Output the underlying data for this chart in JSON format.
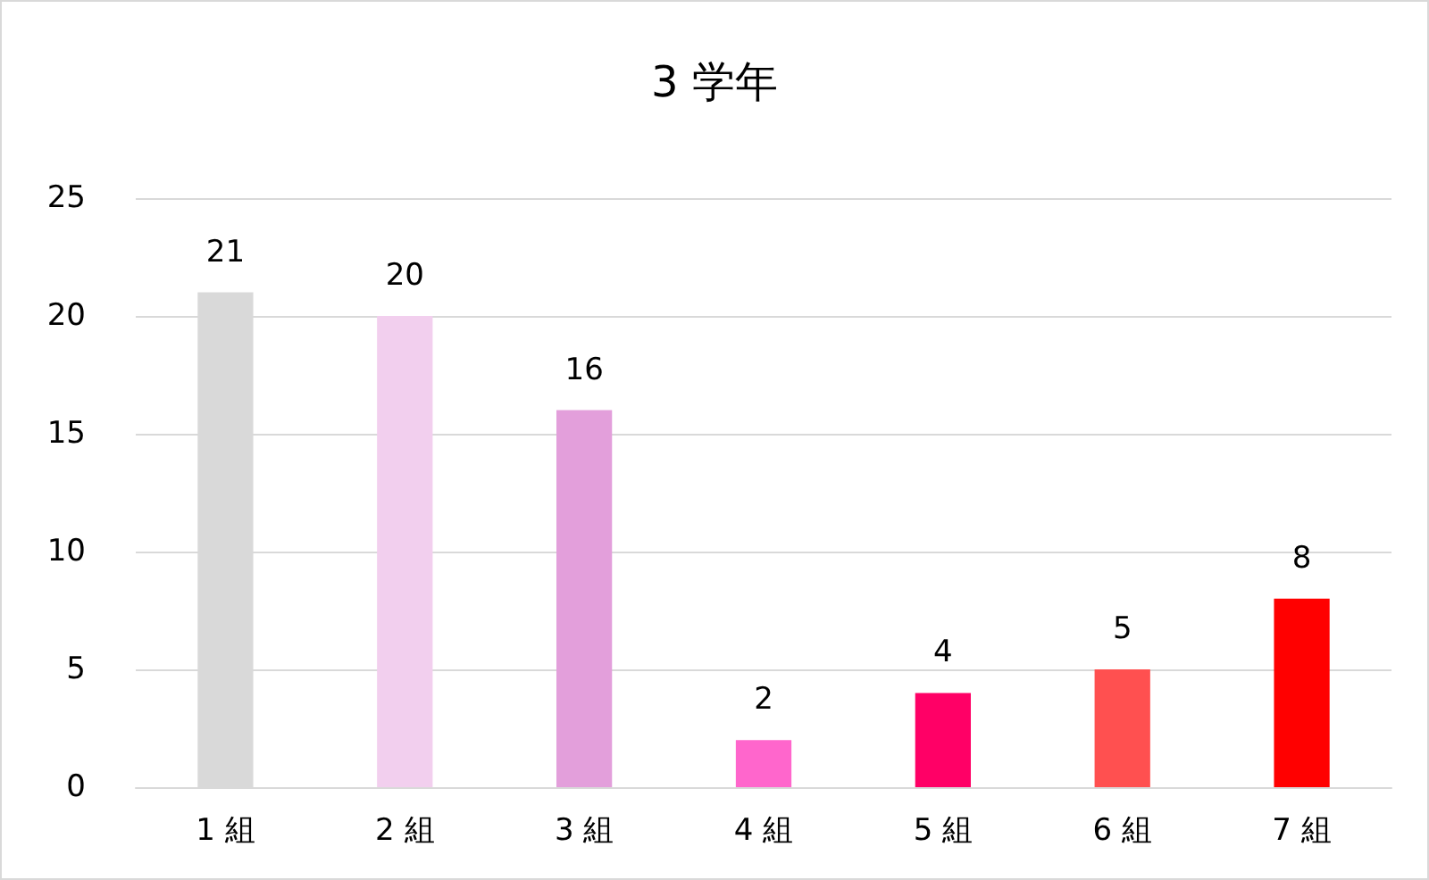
{
  "chart_data": {
    "type": "bar",
    "title": "3 学年",
    "categories": [
      "1 組",
      "2 組",
      "3 組",
      "4 組",
      "5 組",
      "6 組",
      "7 組"
    ],
    "values": [
      21,
      20,
      16,
      2,
      4,
      5,
      8
    ],
    "colors": [
      "#d9d9d9",
      "#f2cfee",
      "#e39fdb",
      "#ff66cc",
      "#ff0066",
      "#ff5050",
      "#ff0000"
    ],
    "ylim": [
      0,
      25
    ],
    "yticks": [
      0,
      5,
      10,
      15,
      20,
      25
    ],
    "grid": "y",
    "data_labels": true
  }
}
